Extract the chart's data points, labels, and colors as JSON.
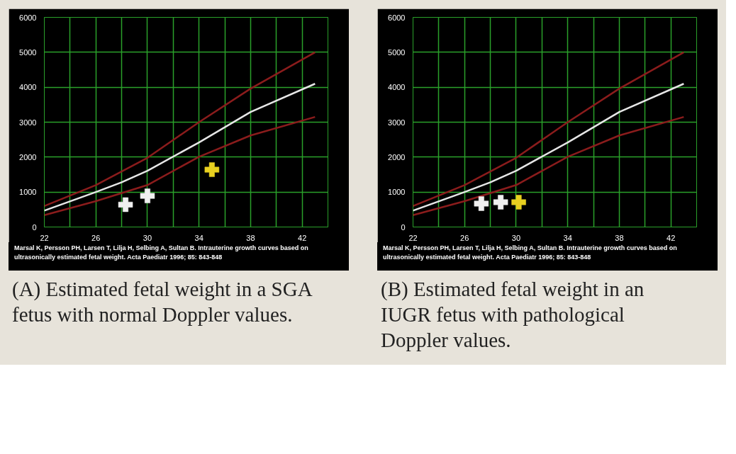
{
  "chart_data": [
    {
      "type": "line",
      "title": "(A) Estimated fetal weight in a SGA fetus with normal Doppler values.",
      "annotations": [
        "Marsal K, Persson PH, Larsen T, Lilja H, Selbing A, Sultan B. Intrauterine growth curves based on ultrasonically estimated fetal weight. Acta Paediatr 1996; 85: 843-848"
      ],
      "xlim": [
        22,
        44
      ],
      "xticks": [
        22,
        {
          "value": 24,
          "label": null
        },
        26,
        {
          "value": 28,
          "label": null
        },
        30,
        {
          "value": 32,
          "label": null
        },
        34,
        {
          "value": 36,
          "label": null
        },
        38,
        {
          "value": 40,
          "label": null
        },
        42,
        {
          "value": 44,
          "label": null
        }
      ],
      "ylim": [
        0,
        6000
      ],
      "yticks": [
        0,
        1000,
        2000,
        3000,
        4000,
        5000,
        6000
      ],
      "grid": true,
      "series": [
        {
          "color": "#8b1c1c",
          "x": [
            22,
            26,
            30,
            34,
            38,
            43
          ],
          "values": [
            600,
            1200,
            1980,
            3000,
            3960,
            5000
          ]
        },
        {
          "color": "#e6e6e6",
          "x": [
            22,
            26,
            28,
            30,
            34,
            38,
            43
          ],
          "values": [
            470,
            1000,
            1280,
            1610,
            2420,
            3290,
            4100
          ]
        },
        {
          "color": "#8b1c1c",
          "x": [
            22,
            26,
            30,
            34,
            38,
            43
          ],
          "values": [
            340,
            740,
            1200,
            2010,
            2620,
            3150
          ]
        },
        {
          "type": "scatter",
          "marker": "cross",
          "x": [
            28.3,
            30,
            35
          ],
          "values": [
            640,
            890,
            1640
          ],
          "colors": [
            "#f0f0f0",
            "#f0f0f0",
            "#e8d020"
          ]
        }
      ]
    },
    {
      "type": "line",
      "title": "(B) Estimated fetal weight in an IUGR fetus with pathological Doppler values.",
      "annotations": [
        "Marsal K, Persson PH, Larsen T, Lilja H, Selbing A, Sultan B. Intrauterine growth curves based on ultrasonically estimated fetal weight. Acta Paediatr 1996; 85: 843-848"
      ],
      "xlim": [
        22,
        44
      ],
      "xticks": [
        22,
        {
          "value": 24,
          "label": null
        },
        26,
        {
          "value": 28,
          "label": null
        },
        30,
        {
          "value": 32,
          "label": null
        },
        34,
        {
          "value": 36,
          "label": null
        },
        38,
        {
          "value": 40,
          "label": null
        },
        42,
        {
          "value": 44,
          "label": null
        }
      ],
      "ylim": [
        0,
        6000
      ],
      "yticks": [
        0,
        1000,
        2000,
        3000,
        4000,
        5000,
        6000
      ],
      "grid": true,
      "series": [
        {
          "color": "#8b1c1c",
          "x": [
            22,
            26,
            30,
            34,
            38,
            43
          ],
          "values": [
            600,
            1200,
            1980,
            3000,
            3960,
            5000
          ]
        },
        {
          "color": "#e6e6e6",
          "x": [
            22,
            26,
            28,
            30,
            34,
            38,
            43
          ],
          "values": [
            470,
            1000,
            1280,
            1610,
            2420,
            3290,
            4100
          ]
        },
        {
          "color": "#8b1c1c",
          "x": [
            22,
            26,
            30,
            34,
            38,
            43
          ],
          "values": [
            340,
            740,
            1200,
            2010,
            2620,
            3150
          ]
        },
        {
          "type": "scatter",
          "marker": "cross",
          "x": [
            27.3,
            28.8,
            30.2
          ],
          "values": [
            670,
            710,
            710
          ],
          "colors": [
            "#f0f0f0",
            "#f0f0f0",
            "#e8d020"
          ]
        }
      ]
    }
  ]
}
